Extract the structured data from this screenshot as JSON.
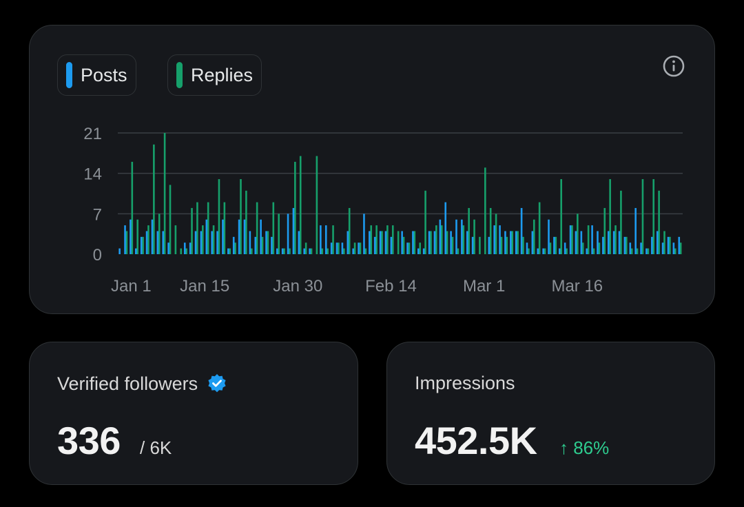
{
  "legend": {
    "posts_label": "Posts",
    "replies_label": "Replies"
  },
  "colors": {
    "posts": "#1d9bf0",
    "replies": "#16a06b",
    "background": "#000000",
    "card": "#16181c",
    "grid": "#3a3f44",
    "tick": "#8b9096",
    "positive": "#2ecc8f"
  },
  "chart_data": {
    "type": "bar",
    "title": "",
    "xlabel": "",
    "ylabel": "",
    "ylim": [
      0,
      21
    ],
    "yticks": [
      0,
      7,
      14,
      21
    ],
    "x_tick_labels": [
      {
        "day": 1,
        "label": "Jan 1"
      },
      {
        "day": 15,
        "label": "Jan 15"
      },
      {
        "day": 30,
        "label": "Jan 30"
      },
      {
        "day": 45,
        "label": "Feb 14"
      },
      {
        "day": 60,
        "label": "Mar 1"
      },
      {
        "day": 75,
        "label": "Mar 16"
      }
    ],
    "series": [
      {
        "name": "Posts",
        "values": [
          1,
          5,
          6,
          1,
          3,
          4,
          6,
          4,
          4,
          2,
          0,
          0,
          2,
          2,
          4,
          4,
          6,
          4,
          4,
          6,
          1,
          3,
          6,
          6,
          4,
          3,
          6,
          4,
          3,
          1,
          1,
          7,
          8,
          4,
          1,
          1,
          0,
          5,
          5,
          2,
          2,
          2,
          4,
          1,
          2,
          7,
          4,
          3,
          4,
          4,
          3,
          0,
          4,
          2,
          4,
          1,
          1,
          4,
          4,
          6,
          9,
          4,
          6,
          6,
          4,
          3,
          0,
          0,
          3,
          5,
          5,
          4,
          4,
          4,
          8,
          2,
          4,
          1,
          1,
          6,
          3,
          1,
          2,
          5,
          4,
          4,
          1,
          5,
          4,
          3,
          4,
          4,
          4,
          3,
          2,
          8,
          2,
          1,
          3,
          4,
          2,
          3,
          2,
          3
        ]
      },
      {
        "name": "Replies",
        "values": [
          0,
          4,
          16,
          6,
          3,
          5,
          19,
          7,
          21,
          12,
          5,
          1,
          1,
          8,
          9,
          5,
          9,
          5,
          13,
          9,
          1,
          2,
          13,
          11,
          1,
          9,
          3,
          4,
          9,
          7,
          1,
          1,
          16,
          17,
          2,
          1,
          17,
          1,
          1,
          5,
          2,
          1,
          8,
          2,
          2,
          1,
          5,
          5,
          4,
          5,
          5,
          4,
          3,
          2,
          4,
          2,
          11,
          4,
          5,
          5,
          4,
          3,
          1,
          5,
          8,
          6,
          3,
          15,
          8,
          7,
          3,
          3,
          4,
          4,
          3,
          1,
          6,
          9,
          1,
          2,
          3,
          13,
          1,
          5,
          7,
          2,
          5,
          1,
          2,
          8,
          13,
          5,
          11,
          3,
          1,
          1,
          13,
          1,
          13,
          11,
          4,
          3,
          1,
          2
        ]
      }
    ]
  },
  "followers": {
    "label": "Verified followers",
    "value": "336",
    "total": "/ 6K"
  },
  "impressions": {
    "label": "Impressions",
    "value": "452.5K",
    "change": "↑ 86%"
  }
}
